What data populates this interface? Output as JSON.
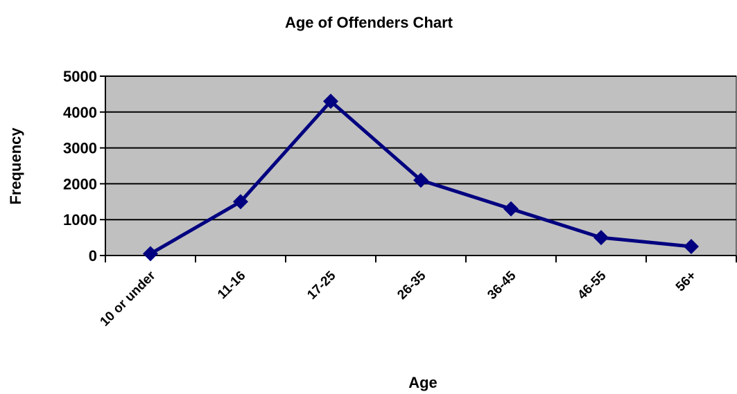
{
  "chart_data": {
    "type": "line",
    "title": "Age of Offenders Chart",
    "x_label": "Age",
    "y_label": "Frequency",
    "categories": [
      "10 or under",
      "11-16",
      "17-25",
      "26-35",
      "36-45",
      "46-55",
      "56+"
    ],
    "series": [
      {
        "name": "Frequency",
        "color": "#000080",
        "values": [
          50,
          1500,
          4300,
          2100,
          1300,
          500,
          250
        ]
      }
    ],
    "ylim": [
      0,
      5000
    ],
    "yticks": [
      0,
      1000,
      2000,
      3000,
      4000,
      5000
    ],
    "grid": true,
    "plot_background": "#c0c0c0"
  }
}
